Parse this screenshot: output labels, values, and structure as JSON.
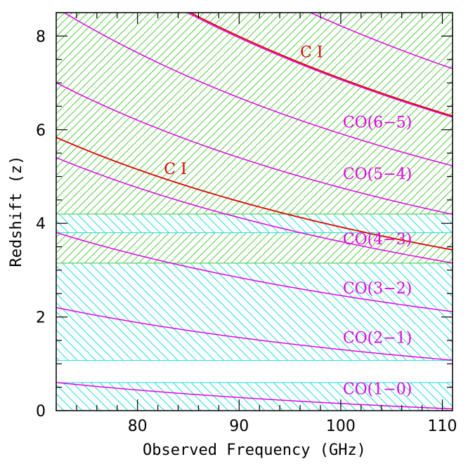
{
  "chart_data": {
    "type": "line",
    "xlabel": "Observed Frequency (GHz)",
    "ylabel": "Redshift (z)",
    "xlim": [
      72,
      111
    ],
    "ylim": [
      0,
      8.5
    ],
    "x_ticks": [
      {
        "value": 80,
        "label": "80"
      },
      {
        "value": 90,
        "label": "90"
      },
      {
        "value": 100,
        "label": "100"
      },
      {
        "value": 110,
        "label": "110"
      }
    ],
    "y_ticks": [
      {
        "value": 0,
        "label": "0"
      },
      {
        "value": 2,
        "label": "2"
      },
      {
        "value": 4,
        "label": "4"
      },
      {
        "value": 6,
        "label": "6"
      },
      {
        "value": 8,
        "label": "8"
      }
    ],
    "colors": {
      "co": "#e600e6",
      "ci": "#e00000",
      "green_hatch": "#55cc44",
      "cyan_hatch": "#22dddd"
    },
    "series": [
      {
        "name": "CO(1-0)",
        "rest_ghz": 115.271,
        "color": "#e600e6",
        "label": "CO(1−0)",
        "label_x": 100.2,
        "label_z": 0.35
      },
      {
        "name": "CO(2-1)",
        "rest_ghz": 230.538,
        "color": "#e600e6",
        "label": "CO(2−1)",
        "label_x": 100.2,
        "label_z": 1.45
      },
      {
        "name": "CO(3-2)",
        "rest_ghz": 345.796,
        "color": "#e600e6",
        "label": "CO(3−2)",
        "label_x": 100.2,
        "label_z": 2.5
      },
      {
        "name": "CO(4-3)",
        "rest_ghz": 461.041,
        "color": "#e600e6",
        "label": "CO(4−3)",
        "label_x": 100.2,
        "label_z": 3.55
      },
      {
        "name": "CO(5-4)",
        "rest_ghz": 576.268,
        "color": "#e600e6",
        "label": "CO(5−4)",
        "label_x": 100.2,
        "label_z": 4.95
      },
      {
        "name": "CO(6-5)",
        "rest_ghz": 691.473,
        "color": "#e600e6",
        "label": "CO(6−5)",
        "label_x": 100.2,
        "label_z": 6.05
      },
      {
        "name": "CO(7-6)",
        "rest_ghz": 806.652,
        "color": "#e600e6",
        "label": "",
        "label_x": 0,
        "label_z": 0
      },
      {
        "name": "CO(8-7)",
        "rest_ghz": 921.8,
        "color": "#e600e6",
        "label": "",
        "label_x": 0,
        "label_z": 0
      },
      {
        "name": "C I (1-0)",
        "rest_ghz": 492.161,
        "color": "#e00000",
        "label": "C I",
        "label_x": 82.6,
        "label_z": 5.05
      },
      {
        "name": "C I (2-1)",
        "rest_ghz": 809.342,
        "color": "#e00000",
        "label": "C I",
        "label_x": 96.0,
        "label_z": 7.55
      }
    ],
    "bands": [
      {
        "name": "cyan-band-low",
        "z_min": 0.0,
        "z_max": 0.6,
        "hatch": "cyan"
      },
      {
        "name": "cyan-band-mid",
        "z_min": 1.07,
        "z_max": 3.15,
        "hatch": "cyan"
      },
      {
        "name": "green-band-low",
        "z_min": 3.15,
        "z_max": 3.8,
        "hatch": "green"
      },
      {
        "name": "cyan-band-high",
        "z_min": 3.8,
        "z_max": 4.2,
        "hatch": "cyan"
      },
      {
        "name": "green-band-high",
        "z_min": 4.2,
        "z_max": 8.5,
        "hatch": "green"
      }
    ]
  }
}
